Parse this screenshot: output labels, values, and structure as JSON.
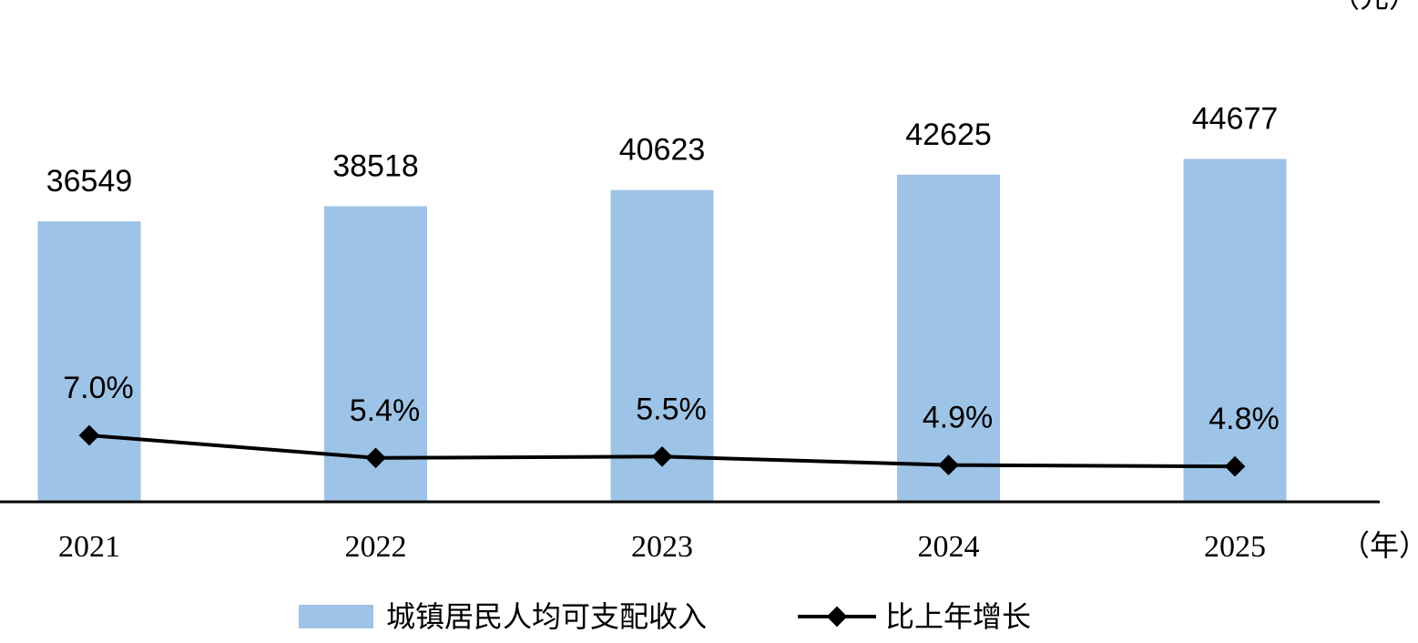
{
  "chart_data": {
    "type": "bar",
    "categories": [
      "2021",
      "2022",
      "2023",
      "2024",
      "2025"
    ],
    "series": [
      {
        "name": "城镇居民人均可支配收入",
        "type": "bar",
        "values": [
          36549,
          38518,
          40623,
          42625,
          44677
        ],
        "labels": [
          "36549",
          "38518",
          "40623",
          "42625",
          "44677"
        ],
        "color": "#9DC3E6"
      },
      {
        "name": "比上年增长",
        "type": "line",
        "values": [
          7.0,
          5.4,
          5.5,
          4.9,
          4.8
        ],
        "labels": [
          "7.0%",
          "5.4%",
          "5.5%",
          "4.9%",
          "4.8%"
        ],
        "color": "#000000",
        "marker": "diamond"
      }
    ],
    "x_unit": "（年）",
    "y_unit": "（元）",
    "ylim": [
      0,
      50000
    ],
    "line_ylim": [
      0,
      30
    ],
    "grid": false,
    "legend_position": "bottom"
  }
}
